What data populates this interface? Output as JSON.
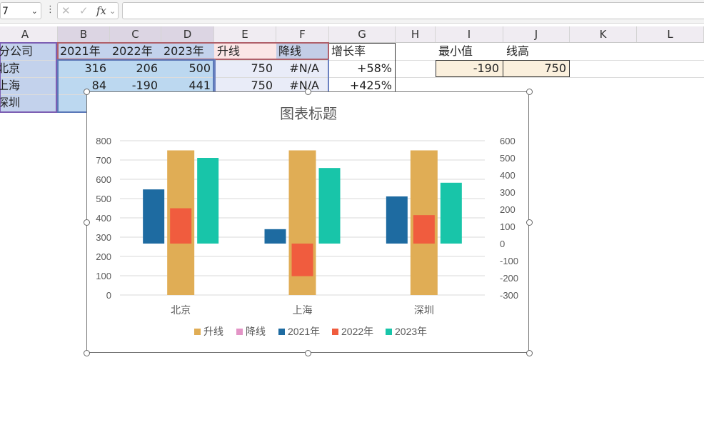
{
  "formula_bar": {
    "name_box": "7",
    "cancel_icon": "✕",
    "enter_icon": "✓",
    "fx_label": "fx",
    "formula": ""
  },
  "columns": [
    "A",
    "B",
    "C",
    "D",
    "E",
    "F",
    "G",
    "H",
    "I",
    "J",
    "K",
    "L"
  ],
  "sheet": {
    "header_row": [
      "分公司",
      "2021年",
      "2022年",
      "2023年",
      "升线",
      "降线",
      "增长率"
    ],
    "rows": [
      {
        "branch": "北京",
        "y2021": "316",
        "y2022": "206",
        "y2023": "500",
        "up": "750",
        "down": "#N/A",
        "growth": "+58%"
      },
      {
        "branch": "上海",
        "y2021": "84",
        "y2022": "-190",
        "y2023": "441",
        "up": "750",
        "down": "#N/A",
        "growth": "+425%"
      },
      {
        "branch": "深圳",
        "y2021": "",
        "y2022": "",
        "y2023": "",
        "up": "",
        "down": "",
        "growth": ""
      }
    ],
    "side_labels": {
      "min_label": "最小值",
      "line_label": "线高"
    },
    "side_values": {
      "min_value": "-190",
      "line_value": "750"
    }
  },
  "chart_data": {
    "type": "bar",
    "title": "图表标题",
    "categories": [
      "北京",
      "上海",
      "深圳"
    ],
    "primary_axis": {
      "ylim": [
        0,
        800
      ],
      "ticks": [
        "0",
        "100",
        "200",
        "300",
        "400",
        "500",
        "600",
        "700",
        "800"
      ]
    },
    "secondary_axis": {
      "ylim": [
        -300,
        600
      ],
      "ticks": [
        "-300",
        "-200",
        "-100",
        "0",
        "100",
        "200",
        "300",
        "400",
        "500",
        "600"
      ]
    },
    "series": [
      {
        "name": "升线",
        "axis": "primary",
        "values": [
          750,
          750,
          750
        ],
        "color": "#e0ad55"
      },
      {
        "name": "降线",
        "axis": "primary",
        "values": [
          null,
          null,
          null
        ],
        "color": "#e394c6"
      },
      {
        "name": "2021年",
        "axis": "secondary",
        "values": [
          316,
          84,
          275
        ],
        "color": "#1e6ba1"
      },
      {
        "name": "2022年",
        "axis": "secondary",
        "values": [
          206,
          -190,
          166
        ],
        "color": "#f05c3e"
      },
      {
        "name": "2023年",
        "axis": "secondary",
        "values": [
          500,
          441,
          355
        ],
        "color": "#18c5a9"
      }
    ],
    "grid": true,
    "legend_position": "bottom"
  }
}
